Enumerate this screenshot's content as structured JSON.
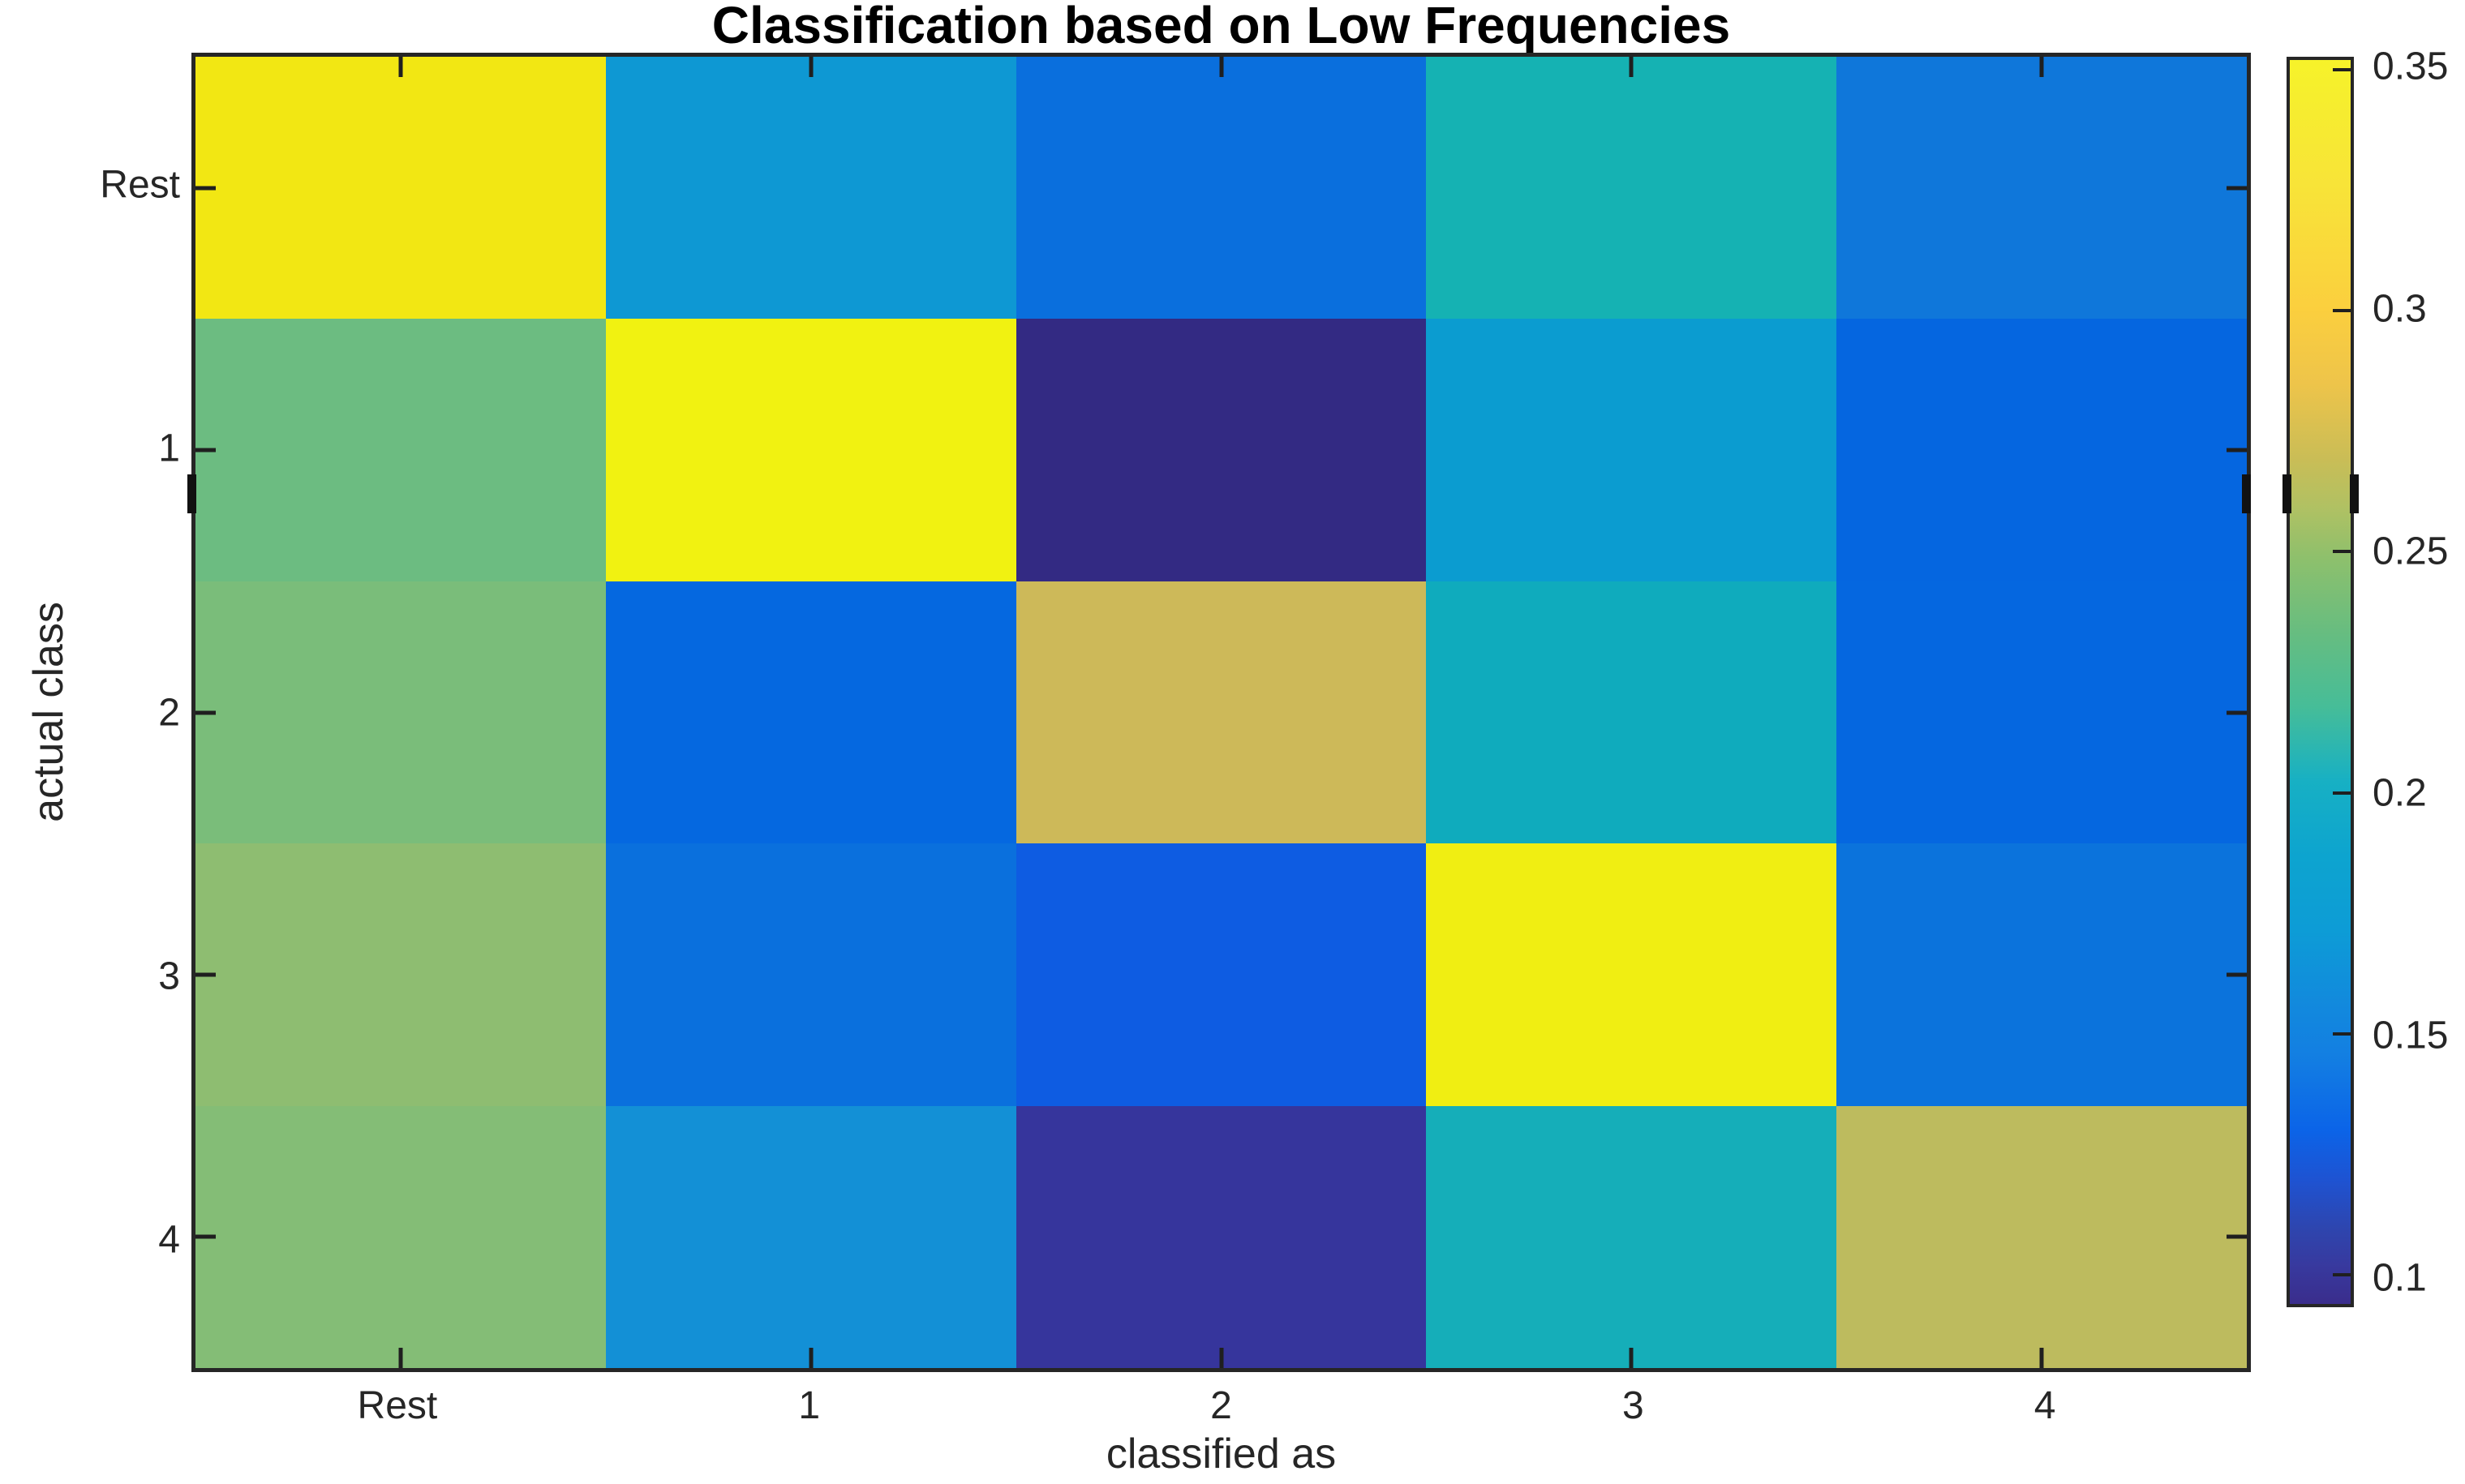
{
  "figure": {
    "background": "#ffffff",
    "axis_color": "#262626",
    "tick_color": "#1f1f1f",
    "title_color": "#000000"
  },
  "chart_data": {
    "type": "heatmap",
    "title": "Classification based on Low Frequencies",
    "xlabel": "classified as",
    "ylabel": "actual class",
    "x_tick_labels": [
      "Rest",
      "1",
      "2",
      "3",
      "4"
    ],
    "y_tick_labels": [
      "Rest",
      "1",
      "2",
      "3",
      "4"
    ],
    "colormap": "parula",
    "color_scale": {
      "min": 0.094,
      "max": 0.352
    },
    "colorbar_ticks": [
      "0.35",
      "0.3",
      "0.25",
      "0.2",
      "0.15",
      "0.1"
    ],
    "colorbar_tick_values": [
      0.35,
      0.3,
      0.25,
      0.2,
      0.15,
      0.1
    ],
    "colorbar_gradient": [
      [
        0.0,
        "#f7f32a"
      ],
      [
        0.03,
        "#f6ee2e"
      ],
      [
        0.1,
        "#f8e438"
      ],
      [
        0.2,
        "#fbcf3e"
      ],
      [
        0.26,
        "#eec44a"
      ],
      [
        0.32,
        "#cabd56"
      ],
      [
        0.36,
        "#b0c163"
      ],
      [
        0.4,
        "#8ec06c"
      ],
      [
        0.46,
        "#67bd80"
      ],
      [
        0.52,
        "#46bd98"
      ],
      [
        0.58,
        "#17b0c4"
      ],
      [
        0.64,
        "#0da4cf"
      ],
      [
        0.7,
        "#0d9cd6"
      ],
      [
        0.76,
        "#1289dd"
      ],
      [
        0.8,
        "#137fe2"
      ],
      [
        0.86,
        "#0b64e8"
      ],
      [
        0.9,
        "#1e53d2"
      ],
      [
        0.94,
        "#2e45ae"
      ],
      [
        0.97,
        "#38399e"
      ],
      [
        1.0,
        "#3a2d8c"
      ]
    ],
    "rows": [
      {
        "label": "Rest",
        "values": [
          0.34,
          0.168,
          0.14,
          0.207,
          0.147
        ],
        "colors": [
          "#f2e713",
          "#0e98d3",
          "#0a6fdd",
          "#15b2b3",
          "#0f77da"
        ]
      },
      {
        "label": "1",
        "values": [
          0.24,
          0.352,
          0.094,
          0.177,
          0.133
        ],
        "colors": [
          "#6cbc81",
          "#f1f211",
          "#332a83",
          "#0b9cd0",
          "#0566e0"
        ]
      },
      {
        "label": "2",
        "values": [
          0.245,
          0.133,
          0.275,
          0.197,
          0.133
        ],
        "colors": [
          "#7abd7a",
          "#0568e0",
          "#cdb959",
          "#0fabbd",
          "#0567e0"
        ]
      },
      {
        "label": "3",
        "values": [
          0.25,
          0.139,
          0.127,
          0.348,
          0.141
        ],
        "colors": [
          "#8ebd71",
          "#0a70dd",
          "#0e5ce2",
          "#f0ee12",
          "#0b73dc"
        ]
      },
      {
        "label": "4",
        "values": [
          0.247,
          0.161,
          0.103,
          0.203,
          0.265
        ],
        "colors": [
          "#84bd76",
          "#1390d6",
          "#36359c",
          "#15aeb9",
          "#bdbb5e"
        ]
      }
    ]
  }
}
